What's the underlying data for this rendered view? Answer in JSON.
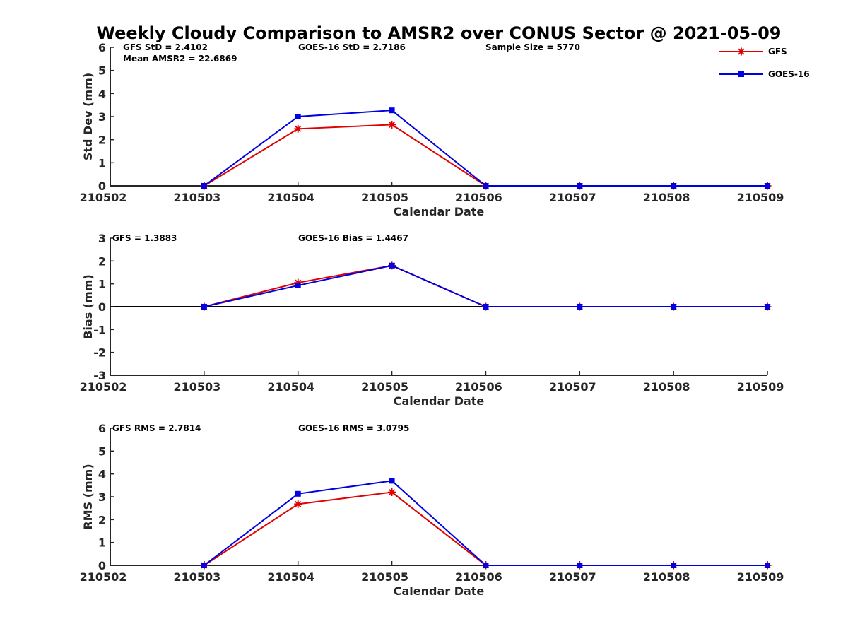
{
  "title": "Weekly Cloudy Comparison to AMSR2 over CONUS Sector @ 2021-05-09",
  "legend": {
    "placement": "top-right",
    "entries": [
      {
        "name": "GFS",
        "color": "#e00000",
        "marker": "asterisk"
      },
      {
        "name": "GOES-16",
        "color": "#0000e0",
        "marker": "square"
      }
    ]
  },
  "chart_data": [
    {
      "type": "line",
      "title": "",
      "xlabel": "Calendar Date",
      "ylabel": "Std Dev (mm)",
      "x": [
        "210502",
        "210503",
        "210504",
        "210505",
        "210506",
        "210507",
        "210508",
        "210509"
      ],
      "ylim": [
        0,
        6
      ],
      "yticks": [
        "0",
        "1",
        "2",
        "3",
        "4",
        "5",
        "6"
      ],
      "grid": false,
      "zero_line": false,
      "annotations": [
        "GFS StD = 2.4102",
        "Mean AMSR2 = 22.6869",
        "GOES-16 StD = 2.7186",
        "Sample Size = 5770"
      ],
      "series": [
        {
          "name": "GFS",
          "color": "#e00000",
          "marker": "asterisk",
          "x": [
            "210503",
            "210504",
            "210505",
            "210506",
            "210507",
            "210508",
            "210509"
          ],
          "values": [
            0,
            2.47,
            2.65,
            0,
            0,
            0,
            0
          ]
        },
        {
          "name": "GOES-16",
          "color": "#0000e0",
          "marker": "square",
          "x": [
            "210503",
            "210504",
            "210505",
            "210506",
            "210507",
            "210508",
            "210509"
          ],
          "values": [
            0,
            3.0,
            3.27,
            0,
            0,
            0,
            0
          ]
        }
      ]
    },
    {
      "type": "line",
      "title": "",
      "xlabel": "Calendar Date",
      "ylabel": "Bias (mm)",
      "x": [
        "210502",
        "210503",
        "210504",
        "210505",
        "210506",
        "210507",
        "210508",
        "210509"
      ],
      "ylim": [
        -3,
        3
      ],
      "yticks": [
        "-3",
        "-2",
        "-1",
        "0",
        "1",
        "2",
        "3"
      ],
      "grid": false,
      "zero_line": true,
      "annotations": [
        "GFS = 1.3883",
        "GOES-16 Bias  = 1.4467"
      ],
      "series": [
        {
          "name": "GFS",
          "color": "#e00000",
          "marker": "asterisk",
          "x": [
            "210503",
            "210504",
            "210505",
            "210506",
            "210507",
            "210508",
            "210509"
          ],
          "values": [
            0,
            1.05,
            1.8,
            0,
            0,
            0,
            0
          ]
        },
        {
          "name": "GOES-16",
          "color": "#0000e0",
          "marker": "square",
          "x": [
            "210503",
            "210504",
            "210505",
            "210506",
            "210507",
            "210508",
            "210509"
          ],
          "values": [
            0,
            0.93,
            1.8,
            0,
            0,
            0,
            0
          ]
        }
      ]
    },
    {
      "type": "line",
      "title": "",
      "xlabel": "Calendar Date",
      "ylabel": "RMS (mm)",
      "x": [
        "210502",
        "210503",
        "210504",
        "210505",
        "210506",
        "210507",
        "210508",
        "210509"
      ],
      "ylim": [
        0,
        6
      ],
      "yticks": [
        "0",
        "1",
        "2",
        "3",
        "4",
        "5",
        "6"
      ],
      "grid": false,
      "zero_line": false,
      "annotations": [
        "GFS RMS = 2.7814",
        "GOES-16 RMS = 3.0795"
      ],
      "series": [
        {
          "name": "GFS",
          "color": "#e00000",
          "marker": "asterisk",
          "x": [
            "210503",
            "210504",
            "210505",
            "210506",
            "210507",
            "210508",
            "210509"
          ],
          "values": [
            0,
            2.68,
            3.2,
            0,
            0,
            0,
            0
          ]
        },
        {
          "name": "GOES-16",
          "color": "#0000e0",
          "marker": "square",
          "x": [
            "210503",
            "210504",
            "210505",
            "210506",
            "210507",
            "210508",
            "210509"
          ],
          "values": [
            0,
            3.13,
            3.7,
            0,
            0,
            0,
            0
          ]
        }
      ]
    }
  ]
}
